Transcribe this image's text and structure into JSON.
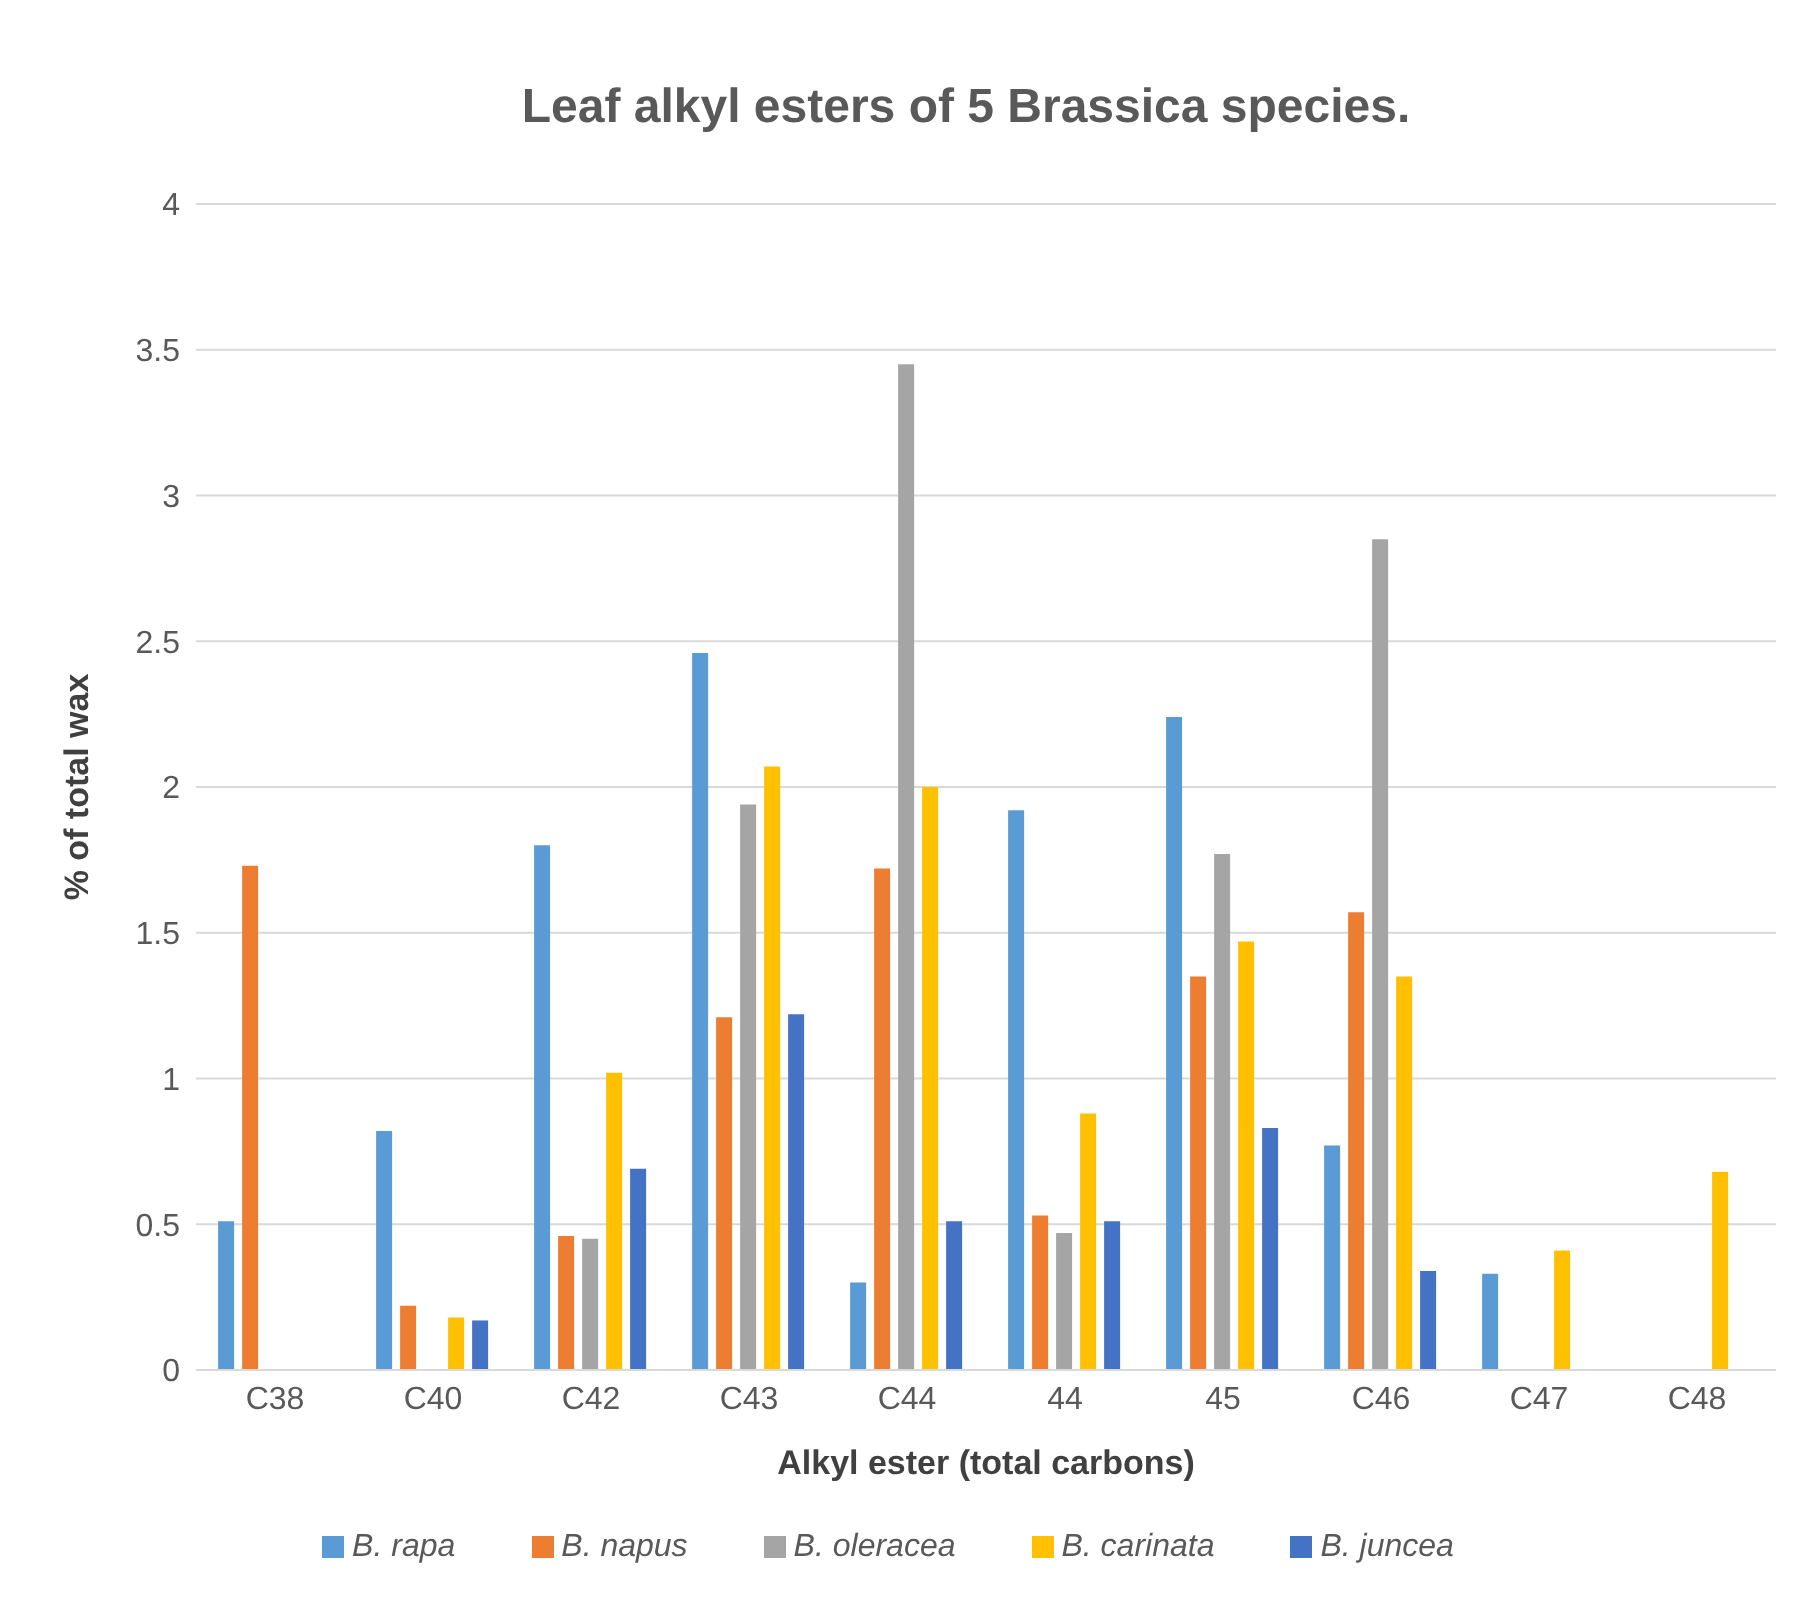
{
  "chart_data": {
    "type": "bar",
    "title": "Leaf alkyl esters of 5 Brassica species.",
    "xlabel": "Alkyl ester (total carbons)",
    "ylabel": "% of total wax",
    "categories": [
      "C38",
      "C40",
      "C42",
      "C43",
      "C44",
      "44",
      "45",
      "C46",
      "C47",
      "C48"
    ],
    "series": [
      {
        "name": "B. rapa",
        "color": "#5b9bd5",
        "values": [
          0.51,
          0.82,
          1.8,
          2.46,
          0.3,
          1.92,
          2.24,
          0.77,
          0.33,
          null
        ]
      },
      {
        "name": "B. napus",
        "color": "#ed7d31",
        "values": [
          1.73,
          0.22,
          0.46,
          1.21,
          1.72,
          0.53,
          1.35,
          1.57,
          null,
          null
        ]
      },
      {
        "name": "B. oleracea",
        "color": "#a5a5a5",
        "values": [
          null,
          null,
          0.45,
          1.94,
          3.45,
          0.47,
          1.77,
          2.85,
          null,
          null
        ]
      },
      {
        "name": "B. carinata",
        "color": "#ffc000",
        "values": [
          null,
          0.18,
          1.02,
          2.07,
          2.0,
          0.88,
          1.47,
          1.35,
          0.41,
          0.68
        ]
      },
      {
        "name": "B. juncea",
        "color": "#4472c4",
        "values": [
          null,
          0.17,
          0.69,
          1.22,
          0.51,
          0.51,
          0.83,
          0.34,
          null,
          null
        ]
      }
    ],
    "ylim": [
      0,
      4
    ],
    "yticks": [
      0,
      0.5,
      1,
      1.5,
      2,
      2.5,
      3,
      3.5,
      4
    ],
    "grid": "y",
    "legend": "bottom"
  }
}
